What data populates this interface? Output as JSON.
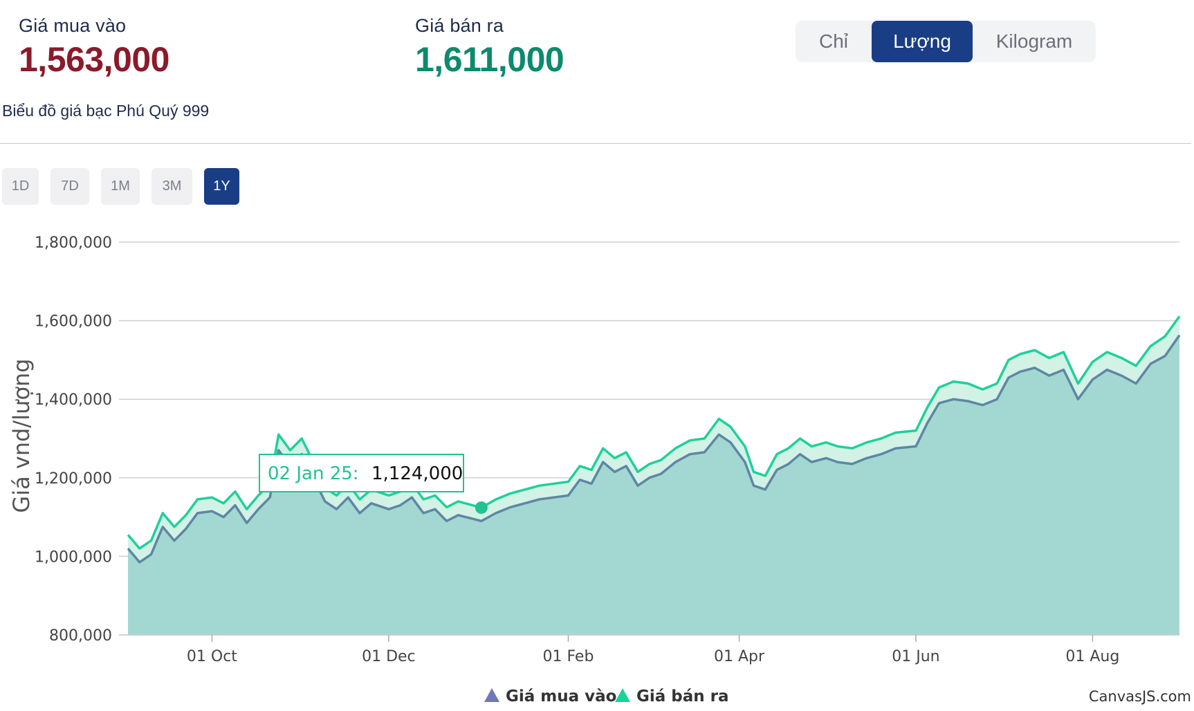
{
  "header": {
    "buy": {
      "label": "Giá mua vào",
      "value": "1,563,000",
      "color": "#8b1a2b"
    },
    "sell": {
      "label": "Giá bán ra",
      "value": "1,611,000",
      "color": "#0c8a6e"
    }
  },
  "units": {
    "options": [
      "Chỉ",
      "Lượng",
      "Kilogram"
    ],
    "selected": "Lượng"
  },
  "chart_title": "Biểu đồ giá bạc Phú Quý 999",
  "ranges": {
    "options": [
      "1D",
      "7D",
      "1M",
      "3M",
      "1Y"
    ],
    "selected": "1Y"
  },
  "tooltip": {
    "date": "02 Jan 25:",
    "value": "1,124,000"
  },
  "credit": "CanvasJS.com",
  "colors": {
    "buy_line": "#5e87a4",
    "sell_line": "#1fd09a",
    "area": "#a3d8d2",
    "accent": "#1a3e85"
  },
  "chart_data": {
    "type": "area",
    "ylabel": "Giá vnd/lượng",
    "xlabel": "",
    "ylim": [
      800000,
      1800000
    ],
    "y_ticks": [
      "800,000",
      "1,000,000",
      "1,200,000",
      "1,400,000",
      "1,600,000",
      "1,800,000"
    ],
    "x_ticks": [
      "01 Oct",
      "01 Dec",
      "01 Feb",
      "01 Apr",
      "01 Jun",
      "01 Aug"
    ],
    "x_tick_dates": [
      "2024-10-01",
      "2024-12-01",
      "2025-02-01",
      "2025-04-01",
      "2025-06-01",
      "2025-08-01"
    ],
    "x_range": [
      "2024-09-02",
      "2025-08-31"
    ],
    "grid": true,
    "legend_position": "bottom-center",
    "series": [
      {
        "name": "Giá mua vào",
        "color": "#5e87a4",
        "points": [
          [
            "2024-09-02",
            1020000
          ],
          [
            "2024-09-06",
            985000
          ],
          [
            "2024-09-10",
            1005000
          ],
          [
            "2024-09-14",
            1075000
          ],
          [
            "2024-09-18",
            1040000
          ],
          [
            "2024-09-22",
            1070000
          ],
          [
            "2024-09-26",
            1110000
          ],
          [
            "2024-10-01",
            1115000
          ],
          [
            "2024-10-05",
            1100000
          ],
          [
            "2024-10-09",
            1130000
          ],
          [
            "2024-10-13",
            1085000
          ],
          [
            "2024-10-17",
            1120000
          ],
          [
            "2024-10-21",
            1150000
          ],
          [
            "2024-10-24",
            1270000
          ],
          [
            "2024-10-28",
            1230000
          ],
          [
            "2024-11-01",
            1260000
          ],
          [
            "2024-11-05",
            1200000
          ],
          [
            "2024-11-09",
            1140000
          ],
          [
            "2024-11-13",
            1120000
          ],
          [
            "2024-11-17",
            1150000
          ],
          [
            "2024-11-21",
            1110000
          ],
          [
            "2024-11-25",
            1135000
          ],
          [
            "2024-12-01",
            1120000
          ],
          [
            "2024-12-05",
            1130000
          ],
          [
            "2024-12-09",
            1150000
          ],
          [
            "2024-12-13",
            1110000
          ],
          [
            "2024-12-17",
            1120000
          ],
          [
            "2024-12-21",
            1090000
          ],
          [
            "2024-12-25",
            1105000
          ],
          [
            "2025-01-02",
            1090000
          ],
          [
            "2025-01-07",
            1110000
          ],
          [
            "2025-01-12",
            1125000
          ],
          [
            "2025-01-17",
            1135000
          ],
          [
            "2025-01-22",
            1145000
          ],
          [
            "2025-01-27",
            1150000
          ],
          [
            "2025-02-01",
            1155000
          ],
          [
            "2025-02-05",
            1195000
          ],
          [
            "2025-02-09",
            1185000
          ],
          [
            "2025-02-13",
            1240000
          ],
          [
            "2025-02-17",
            1215000
          ],
          [
            "2025-02-21",
            1230000
          ],
          [
            "2025-02-25",
            1180000
          ],
          [
            "2025-03-01",
            1200000
          ],
          [
            "2025-03-05",
            1210000
          ],
          [
            "2025-03-10",
            1240000
          ],
          [
            "2025-03-15",
            1260000
          ],
          [
            "2025-03-20",
            1265000
          ],
          [
            "2025-03-25",
            1310000
          ],
          [
            "2025-03-29",
            1290000
          ],
          [
            "2025-04-03",
            1240000
          ],
          [
            "2025-04-06",
            1180000
          ],
          [
            "2025-04-10",
            1170000
          ],
          [
            "2025-04-14",
            1220000
          ],
          [
            "2025-04-18",
            1235000
          ],
          [
            "2025-04-22",
            1260000
          ],
          [
            "2025-04-26",
            1240000
          ],
          [
            "2025-05-01",
            1250000
          ],
          [
            "2025-05-05",
            1240000
          ],
          [
            "2025-05-10",
            1235000
          ],
          [
            "2025-05-15",
            1250000
          ],
          [
            "2025-05-20",
            1260000
          ],
          [
            "2025-05-25",
            1275000
          ],
          [
            "2025-06-01",
            1280000
          ],
          [
            "2025-06-05",
            1340000
          ],
          [
            "2025-06-09",
            1390000
          ],
          [
            "2025-06-14",
            1400000
          ],
          [
            "2025-06-19",
            1395000
          ],
          [
            "2025-06-24",
            1385000
          ],
          [
            "2025-06-29",
            1400000
          ],
          [
            "2025-07-03",
            1455000
          ],
          [
            "2025-07-07",
            1470000
          ],
          [
            "2025-07-12",
            1480000
          ],
          [
            "2025-07-17",
            1460000
          ],
          [
            "2025-07-22",
            1475000
          ],
          [
            "2025-07-27",
            1400000
          ],
          [
            "2025-08-01",
            1450000
          ],
          [
            "2025-08-06",
            1475000
          ],
          [
            "2025-08-11",
            1460000
          ],
          [
            "2025-08-16",
            1440000
          ],
          [
            "2025-08-21",
            1490000
          ],
          [
            "2025-08-26",
            1510000
          ],
          [
            "2025-08-31",
            1563000
          ]
        ]
      },
      {
        "name": "Giá bán ra",
        "color": "#1fd09a",
        "points": [
          [
            "2024-09-02",
            1055000
          ],
          [
            "2024-09-06",
            1020000
          ],
          [
            "2024-09-10",
            1040000
          ],
          [
            "2024-09-14",
            1110000
          ],
          [
            "2024-09-18",
            1075000
          ],
          [
            "2024-09-22",
            1105000
          ],
          [
            "2024-09-26",
            1145000
          ],
          [
            "2024-10-01",
            1150000
          ],
          [
            "2024-10-05",
            1135000
          ],
          [
            "2024-10-09",
            1165000
          ],
          [
            "2024-10-13",
            1120000
          ],
          [
            "2024-10-17",
            1155000
          ],
          [
            "2024-10-21",
            1185000
          ],
          [
            "2024-10-24",
            1310000
          ],
          [
            "2024-10-28",
            1270000
          ],
          [
            "2024-11-01",
            1300000
          ],
          [
            "2024-11-05",
            1240000
          ],
          [
            "2024-11-09",
            1175000
          ],
          [
            "2024-11-13",
            1155000
          ],
          [
            "2024-11-17",
            1185000
          ],
          [
            "2024-11-21",
            1145000
          ],
          [
            "2024-11-25",
            1170000
          ],
          [
            "2024-12-01",
            1155000
          ],
          [
            "2024-12-05",
            1165000
          ],
          [
            "2024-12-09",
            1185000
          ],
          [
            "2024-12-13",
            1145000
          ],
          [
            "2024-12-17",
            1155000
          ],
          [
            "2024-12-21",
            1125000
          ],
          [
            "2024-12-25",
            1140000
          ],
          [
            "2025-01-02",
            1124000
          ],
          [
            "2025-01-07",
            1145000
          ],
          [
            "2025-01-12",
            1160000
          ],
          [
            "2025-01-17",
            1170000
          ],
          [
            "2025-01-22",
            1180000
          ],
          [
            "2025-01-27",
            1185000
          ],
          [
            "2025-02-01",
            1190000
          ],
          [
            "2025-02-05",
            1230000
          ],
          [
            "2025-02-09",
            1220000
          ],
          [
            "2025-02-13",
            1275000
          ],
          [
            "2025-02-17",
            1250000
          ],
          [
            "2025-02-21",
            1265000
          ],
          [
            "2025-02-25",
            1215000
          ],
          [
            "2025-03-01",
            1235000
          ],
          [
            "2025-03-05",
            1245000
          ],
          [
            "2025-03-10",
            1275000
          ],
          [
            "2025-03-15",
            1295000
          ],
          [
            "2025-03-20",
            1300000
          ],
          [
            "2025-03-25",
            1350000
          ],
          [
            "2025-03-29",
            1330000
          ],
          [
            "2025-04-03",
            1280000
          ],
          [
            "2025-04-06",
            1215000
          ],
          [
            "2025-04-10",
            1205000
          ],
          [
            "2025-04-14",
            1260000
          ],
          [
            "2025-04-18",
            1275000
          ],
          [
            "2025-04-22",
            1300000
          ],
          [
            "2025-04-26",
            1280000
          ],
          [
            "2025-05-01",
            1290000
          ],
          [
            "2025-05-05",
            1280000
          ],
          [
            "2025-05-10",
            1275000
          ],
          [
            "2025-05-15",
            1290000
          ],
          [
            "2025-05-20",
            1300000
          ],
          [
            "2025-05-25",
            1315000
          ],
          [
            "2025-06-01",
            1320000
          ],
          [
            "2025-06-05",
            1380000
          ],
          [
            "2025-06-09",
            1430000
          ],
          [
            "2025-06-14",
            1445000
          ],
          [
            "2025-06-19",
            1440000
          ],
          [
            "2025-06-24",
            1425000
          ],
          [
            "2025-06-29",
            1440000
          ],
          [
            "2025-07-03",
            1500000
          ],
          [
            "2025-07-07",
            1515000
          ],
          [
            "2025-07-12",
            1525000
          ],
          [
            "2025-07-17",
            1505000
          ],
          [
            "2025-07-22",
            1520000
          ],
          [
            "2025-07-27",
            1440000
          ],
          [
            "2025-08-01",
            1495000
          ],
          [
            "2025-08-06",
            1520000
          ],
          [
            "2025-08-11",
            1505000
          ],
          [
            "2025-08-16",
            1485000
          ],
          [
            "2025-08-21",
            1535000
          ],
          [
            "2025-08-26",
            1560000
          ],
          [
            "2025-08-31",
            1611000
          ]
        ]
      }
    ]
  }
}
